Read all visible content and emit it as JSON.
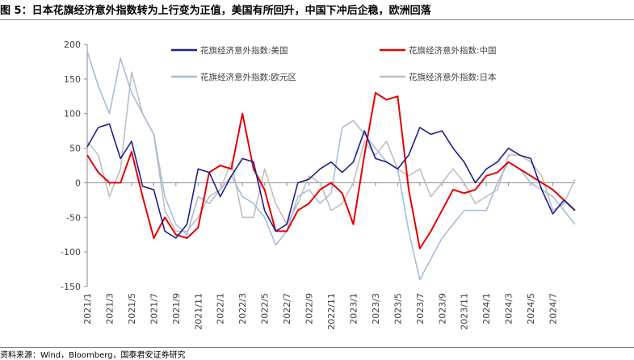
{
  "figure": {
    "title": "图 5：日本花旗经济意外指数转为上行变为正值，美国有所回升，中国下冲后企稳，欧洲回落",
    "source": "资料来源：Wind，Bloomberg，国泰君安证券研究"
  },
  "chart_data": {
    "type": "line",
    "ylim": [
      -150,
      200
    ],
    "yticks": [
      200,
      150,
      100,
      50,
      0,
      -50,
      -100,
      -150
    ],
    "xlim": [
      "2021-01",
      "2024-09"
    ],
    "xticks": [
      "2021/1",
      "2021/3",
      "2021/5",
      "2021/7",
      "2021/9",
      "2021/11",
      "2022/1",
      "2022/3",
      "2022/5",
      "2022/7",
      "2022/9",
      "2022/11",
      "2023/1",
      "2023/3",
      "2023/5",
      "2023/7",
      "2023/9",
      "2023/11",
      "2024/1",
      "2024/3",
      "2024/5",
      "2024/7"
    ],
    "grid": false,
    "legend_position": "top",
    "series": [
      {
        "name": "花旗经济意外指数:美国",
        "color": "#1f1f8c",
        "data": [
          [
            "2021-01",
            52
          ],
          [
            "2021-02",
            80
          ],
          [
            "2021-03",
            85
          ],
          [
            "2021-04",
            35
          ],
          [
            "2021-05",
            60
          ],
          [
            "2021-06",
            -5
          ],
          [
            "2021-07",
            -10
          ],
          [
            "2021-08",
            -70
          ],
          [
            "2021-09",
            -80
          ],
          [
            "2021-10",
            -60
          ],
          [
            "2021-11",
            20
          ],
          [
            "2021-12",
            15
          ],
          [
            "2022-01",
            -20
          ],
          [
            "2022-02",
            10
          ],
          [
            "2022-03",
            35
          ],
          [
            "2022-04",
            30
          ],
          [
            "2022-05",
            -40
          ],
          [
            "2022-06",
            -70
          ],
          [
            "2022-07",
            -60
          ],
          [
            "2022-08",
            0
          ],
          [
            "2022-09",
            5
          ],
          [
            "2022-10",
            20
          ],
          [
            "2022-11",
            30
          ],
          [
            "2022-12",
            15
          ],
          [
            "2023-01",
            30
          ],
          [
            "2023-02",
            75
          ],
          [
            "2023-03",
            35
          ],
          [
            "2023-04",
            30
          ],
          [
            "2023-05",
            20
          ],
          [
            "2023-06",
            40
          ],
          [
            "2023-07",
            80
          ],
          [
            "2023-08",
            70
          ],
          [
            "2023-09",
            75
          ],
          [
            "2023-10",
            50
          ],
          [
            "2023-11",
            30
          ],
          [
            "2023-12",
            0
          ],
          [
            "2024-01",
            20
          ],
          [
            "2024-02",
            30
          ],
          [
            "2024-03",
            50
          ],
          [
            "2024-04",
            40
          ],
          [
            "2024-05",
            35
          ],
          [
            "2024-06",
            -10
          ],
          [
            "2024-07",
            -45
          ],
          [
            "2024-08",
            -25
          ],
          [
            "2024-09",
            -40
          ]
        ]
      },
      {
        "name": "花旗经济意外指数:中国",
        "color": "#e60000",
        "data": [
          [
            "2021-01",
            40
          ],
          [
            "2021-02",
            15
          ],
          [
            "2021-03",
            0
          ],
          [
            "2021-04",
            0
          ],
          [
            "2021-05",
            45
          ],
          [
            "2021-06",
            -20
          ],
          [
            "2021-07",
            -80
          ],
          [
            "2021-08",
            -50
          ],
          [
            "2021-09",
            -75
          ],
          [
            "2021-10",
            -80
          ],
          [
            "2021-11",
            -65
          ],
          [
            "2021-12",
            15
          ],
          [
            "2022-01",
            25
          ],
          [
            "2022-02",
            20
          ],
          [
            "2022-03",
            100
          ],
          [
            "2022-04",
            20
          ],
          [
            "2022-05",
            -10
          ],
          [
            "2022-06",
            -70
          ],
          [
            "2022-07",
            -70
          ],
          [
            "2022-08",
            -40
          ],
          [
            "2022-09",
            -30
          ],
          [
            "2022-10",
            -10
          ],
          [
            "2022-11",
            0
          ],
          [
            "2022-12",
            -15
          ],
          [
            "2023-01",
            -60
          ],
          [
            "2023-02",
            40
          ],
          [
            "2023-03",
            130
          ],
          [
            "2023-04",
            120
          ],
          [
            "2023-05",
            125
          ],
          [
            "2023-06",
            -10
          ],
          [
            "2023-07",
            -95
          ],
          [
            "2023-08",
            -70
          ],
          [
            "2023-09",
            -40
          ],
          [
            "2023-10",
            -10
          ],
          [
            "2023-11",
            -15
          ],
          [
            "2023-12",
            -10
          ],
          [
            "2024-01",
            10
          ],
          [
            "2024-02",
            15
          ],
          [
            "2024-03",
            30
          ],
          [
            "2024-04",
            20
          ],
          [
            "2024-05",
            10
          ],
          [
            "2024-06",
            0
          ],
          [
            "2024-07",
            -10
          ],
          [
            "2024-08",
            -25
          ],
          [
            "2024-09",
            -40
          ]
        ]
      },
      {
        "name": "花旗经济意外指数:欧元区",
        "color": "#a6bddb",
        "data": [
          [
            "2021-01",
            190
          ],
          [
            "2021-02",
            140
          ],
          [
            "2021-03",
            100
          ],
          [
            "2021-04",
            180
          ],
          [
            "2021-05",
            130
          ],
          [
            "2021-06",
            100
          ],
          [
            "2021-07",
            70
          ],
          [
            "2021-08",
            -20
          ],
          [
            "2021-09",
            -60
          ],
          [
            "2021-10",
            -75
          ],
          [
            "2021-11",
            -20
          ],
          [
            "2021-12",
            -30
          ],
          [
            "2022-01",
            -10
          ],
          [
            "2022-02",
            10
          ],
          [
            "2022-03",
            -20
          ],
          [
            "2022-04",
            -30
          ],
          [
            "2022-05",
            -50
          ],
          [
            "2022-06",
            -90
          ],
          [
            "2022-07",
            -70
          ],
          [
            "2022-08",
            -20
          ],
          [
            "2022-09",
            -10
          ],
          [
            "2022-10",
            -30
          ],
          [
            "2022-11",
            -15
          ],
          [
            "2022-12",
            80
          ],
          [
            "2023-01",
            90
          ],
          [
            "2023-02",
            70
          ],
          [
            "2023-03",
            50
          ],
          [
            "2023-04",
            30
          ],
          [
            "2023-05",
            20
          ],
          [
            "2023-06",
            -70
          ],
          [
            "2023-07",
            -140
          ],
          [
            "2023-08",
            -110
          ],
          [
            "2023-09",
            -80
          ],
          [
            "2023-10",
            -60
          ],
          [
            "2023-11",
            -40
          ],
          [
            "2023-12",
            -40
          ],
          [
            "2024-01",
            -40
          ],
          [
            "2024-02",
            0
          ],
          [
            "2024-03",
            30
          ],
          [
            "2024-04",
            20
          ],
          [
            "2024-05",
            0
          ],
          [
            "2024-06",
            -10
          ],
          [
            "2024-07",
            -20
          ],
          [
            "2024-08",
            -40
          ],
          [
            "2024-09",
            -60
          ]
        ]
      },
      {
        "name": "花旗经济意外指数:日本",
        "color": "#bfbfbf",
        "data": [
          [
            "2021-01",
            60
          ],
          [
            "2021-02",
            40
          ],
          [
            "2021-03",
            -20
          ],
          [
            "2021-04",
            20
          ],
          [
            "2021-05",
            160
          ],
          [
            "2021-06",
            100
          ],
          [
            "2021-07",
            70
          ],
          [
            "2021-08",
            -40
          ],
          [
            "2021-09",
            -70
          ],
          [
            "2021-10",
            -70
          ],
          [
            "2021-11",
            -50
          ],
          [
            "2021-12",
            -20
          ],
          [
            "2022-01",
            -10
          ],
          [
            "2022-02",
            30
          ],
          [
            "2022-03",
            -50
          ],
          [
            "2022-04",
            -50
          ],
          [
            "2022-05",
            20
          ],
          [
            "2022-06",
            -30
          ],
          [
            "2022-07",
            -60
          ],
          [
            "2022-08",
            -30
          ],
          [
            "2022-09",
            10
          ],
          [
            "2022-10",
            0
          ],
          [
            "2022-11",
            -40
          ],
          [
            "2022-12",
            -30
          ],
          [
            "2023-01",
            0
          ],
          [
            "2023-02",
            60
          ],
          [
            "2023-03",
            40
          ],
          [
            "2023-04",
            60
          ],
          [
            "2023-05",
            20
          ],
          [
            "2023-06",
            10
          ],
          [
            "2023-07",
            20
          ],
          [
            "2023-08",
            -20
          ],
          [
            "2023-09",
            0
          ],
          [
            "2023-10",
            20
          ],
          [
            "2023-11",
            0
          ],
          [
            "2023-12",
            -30
          ],
          [
            "2024-01",
            -20
          ],
          [
            "2024-02",
            -10
          ],
          [
            "2024-03",
            40
          ],
          [
            "2024-04",
            40
          ],
          [
            "2024-05",
            30
          ],
          [
            "2024-06",
            10
          ],
          [
            "2024-07",
            -40
          ],
          [
            "2024-08",
            -30
          ],
          [
            "2024-09",
            5
          ]
        ]
      }
    ]
  }
}
